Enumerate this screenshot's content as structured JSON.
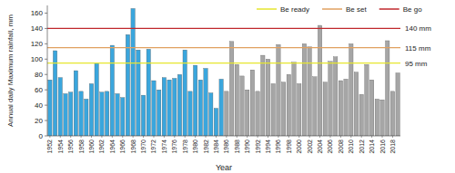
{
  "chart_data": {
    "type": "bar",
    "y_label": "Annual daily Maximum rainfall, mm",
    "x_label": "Year",
    "categories": [
      "1952",
      null,
      "1954",
      null,
      "1956",
      null,
      "1958",
      null,
      "1960",
      null,
      "1962",
      null,
      "1964",
      null,
      "1966",
      null,
      "1968",
      null,
      "1970",
      null,
      "1972",
      null,
      "1974",
      null,
      "1976",
      null,
      "1978",
      null,
      "1980",
      null,
      "1982",
      null,
      "1984",
      null,
      "1986",
      null,
      "1988",
      null,
      "1990",
      null,
      "1992",
      null,
      "1994",
      null,
      "1996",
      null,
      "1998",
      null,
      "2000",
      null,
      "2002",
      null,
      "2004",
      null,
      "2006",
      null,
      "2008",
      null,
      "2010",
      null,
      "2012",
      null,
      "2014",
      null,
      "2016",
      null,
      "2018",
      null
    ],
    "values": [
      73,
      111,
      76,
      55,
      57,
      85,
      58,
      48,
      68,
      95,
      57,
      58,
      118,
      55,
      50,
      132,
      166,
      112,
      53,
      113,
      72,
      60,
      76,
      73,
      75,
      80,
      112,
      58,
      92,
      73,
      88,
      56,
      36,
      74,
      58,
      123,
      93,
      78,
      60,
      86,
      58,
      105,
      100,
      68,
      119,
      70,
      80,
      96,
      68,
      120,
      116,
      77,
      144,
      70,
      97,
      103,
      72,
      74,
      120,
      83,
      54,
      93,
      73,
      48,
      47,
      124,
      58,
      82
    ],
    "colors": [
      "#3aa6dd",
      "#3aa6dd",
      "#3aa6dd",
      "#3aa6dd",
      "#3aa6dd",
      "#3aa6dd",
      "#3aa6dd",
      "#3aa6dd",
      "#3aa6dd",
      "#3aa6dd",
      "#3aa6dd",
      "#3aa6dd",
      "#3aa6dd",
      "#3aa6dd",
      "#3aa6dd",
      "#3aa6dd",
      "#3aa6dd",
      "#3aa6dd",
      "#3aa6dd",
      "#3aa6dd",
      "#3aa6dd",
      "#3aa6dd",
      "#3aa6dd",
      "#3aa6dd",
      "#3aa6dd",
      "#3aa6dd",
      "#3aa6dd",
      "#3aa6dd",
      "#3aa6dd",
      "#3aa6dd",
      "#3aa6dd",
      "#3aa6dd",
      "#3aa6dd",
      "#3aa6dd",
      "#a6a6a6",
      "#a6a6a6",
      "#a6a6a6",
      "#a6a6a6",
      "#a6a6a6",
      "#a6a6a6",
      "#a6a6a6",
      "#a6a6a6",
      "#a6a6a6",
      "#a6a6a6",
      "#a6a6a6",
      "#a6a6a6",
      "#a6a6a6",
      "#a6a6a6",
      "#a6a6a6",
      "#a6a6a6",
      "#a6a6a6",
      "#a6a6a6",
      "#a6a6a6",
      "#a6a6a6",
      "#a6a6a6",
      "#a6a6a6",
      "#a6a6a6",
      "#a6a6a6",
      "#a6a6a6",
      "#a6a6a6",
      "#a6a6a6",
      "#a6a6a6",
      "#a6a6a6",
      "#a6a6a6",
      "#a6a6a6",
      "#a6a6a6",
      "#a6a6a6",
      "#a6a6a6"
    ],
    "thresholds": [
      {
        "name": "Be ready",
        "value": 95,
        "value_label": "95 mm",
        "color": "#e6e62e"
      },
      {
        "name": "Be set",
        "value": 115,
        "value_label": "115 mm",
        "color": "#e0a060"
      },
      {
        "name": "Be go",
        "value": 140,
        "value_label": "140 mm",
        "color": "#c0282c"
      }
    ],
    "legend": "top-right",
    "grid": false,
    "ylim": [
      0,
      170
    ],
    "yticks": [
      0,
      20,
      40,
      60,
      80,
      100,
      120,
      140,
      160
    ]
  }
}
